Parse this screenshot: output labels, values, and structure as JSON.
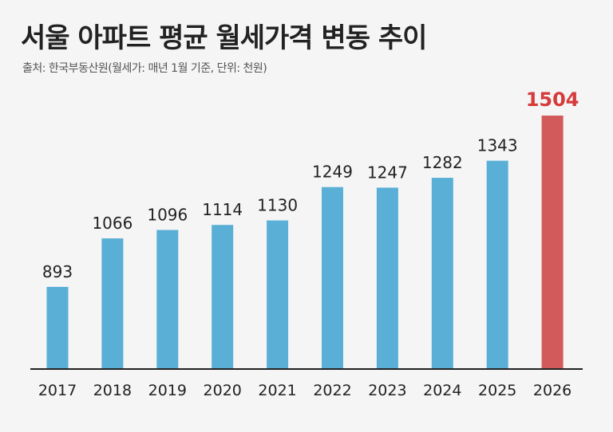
{
  "title": "서울 아파트 평균 월세가격 변동 추이",
  "subtitle": "출처: 한국부동산원(월세가: 매년 1월 기준, 단위: 천원)",
  "chart_data": {
    "type": "bar",
    "title": "서울 아파트 평균 월세가격 변동 추이",
    "categories": [
      "2017",
      "2018",
      "2019",
      "2020",
      "2021",
      "2022",
      "2023",
      "2024",
      "2025",
      "2026"
    ],
    "values": [
      893,
      1066,
      1096,
      1114,
      1130,
      1249,
      1247,
      1282,
      1343,
      1504
    ],
    "xlabel": "",
    "ylabel": "",
    "ylim": [
      600,
      1700
    ],
    "grid": false,
    "colors": {
      "bar": "#5aafd6",
      "highlight": "#d35a5a",
      "highlight_label": "#d63a3a",
      "label": "#222222",
      "axis": "#222222"
    },
    "highlight_index": 9
  }
}
